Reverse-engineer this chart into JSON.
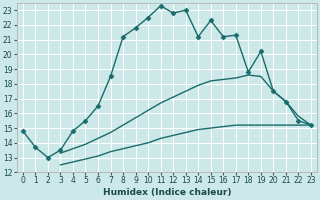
{
  "xlabel": "Humidex (Indice chaleur)",
  "bg_color": "#cce8e8",
  "grid_color": "#ffffff",
  "line_color": "#1a6b6b",
  "xlim": [
    -0.5,
    23.5
  ],
  "ylim": [
    12,
    23.5
  ],
  "yticks": [
    12,
    13,
    14,
    15,
    16,
    17,
    18,
    19,
    20,
    21,
    22,
    23
  ],
  "xticks": [
    0,
    1,
    2,
    3,
    4,
    5,
    6,
    7,
    8,
    9,
    10,
    11,
    12,
    13,
    14,
    15,
    16,
    17,
    18,
    19,
    20,
    21,
    22,
    23
  ],
  "series": [
    {
      "x": [
        0,
        1,
        2,
        3,
        4,
        5,
        6,
        7,
        8,
        9,
        10,
        11,
        12,
        13,
        14,
        15,
        16,
        17,
        18,
        19,
        20,
        21,
        22,
        23
      ],
      "y": [
        14.8,
        13.7,
        13.0,
        13.5,
        14.8,
        15.5,
        16.5,
        18.5,
        21.2,
        21.8,
        22.5,
        23.3,
        22.8,
        23.0,
        21.2,
        22.3,
        21.2,
        21.3,
        18.8,
        20.2,
        17.5,
        16.8,
        15.5,
        15.2
      ],
      "marker": "D",
      "markersize": 2.5,
      "linewidth": 1.0
    },
    {
      "x": [
        3,
        4,
        5,
        6,
        7,
        8,
        9,
        10,
        11,
        12,
        13,
        14,
        15,
        16,
        17,
        18,
        19,
        20,
        21,
        22,
        23
      ],
      "y": [
        13.3,
        13.6,
        13.9,
        14.3,
        14.7,
        15.2,
        15.7,
        16.2,
        16.7,
        17.1,
        17.5,
        17.9,
        18.2,
        18.3,
        18.4,
        18.6,
        18.5,
        17.5,
        16.8,
        15.8,
        15.2
      ],
      "marker": null,
      "markersize": 0,
      "linewidth": 1.0
    },
    {
      "x": [
        3,
        4,
        5,
        6,
        7,
        8,
        9,
        10,
        11,
        12,
        13,
        14,
        15,
        16,
        17,
        18,
        19,
        20,
        21,
        22,
        23
      ],
      "y": [
        12.5,
        12.7,
        12.9,
        13.1,
        13.4,
        13.6,
        13.8,
        14.0,
        14.3,
        14.5,
        14.7,
        14.9,
        15.0,
        15.1,
        15.2,
        15.2,
        15.2,
        15.2,
        15.2,
        15.2,
        15.2
      ],
      "marker": null,
      "markersize": 0,
      "linewidth": 1.0
    }
  ]
}
